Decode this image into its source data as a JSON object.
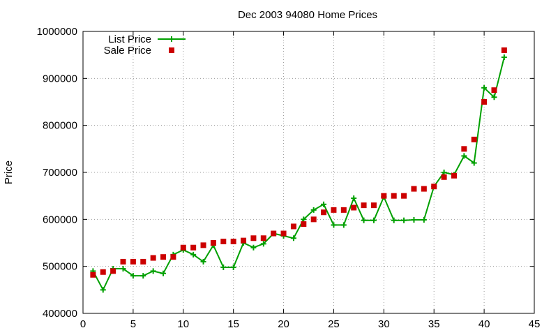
{
  "chart_data": {
    "type": "scatter",
    "title": "Dec 2003 94080 Home Prices",
    "xlabel": "",
    "ylabel": "Price",
    "xlim": [
      0,
      45
    ],
    "ylim": [
      400000,
      1000000
    ],
    "xticks": [
      0,
      5,
      10,
      15,
      20,
      25,
      30,
      35,
      40,
      45
    ],
    "yticks": [
      400000,
      500000,
      600000,
      700000,
      800000,
      900000,
      1000000
    ],
    "grid": true,
    "legend_position": "top-left",
    "series": [
      {
        "name": "List Price",
        "style": "linespoints",
        "color": "#00a000",
        "x": [
          1,
          2,
          3,
          4,
          5,
          6,
          7,
          8,
          9,
          10,
          11,
          12,
          13,
          14,
          15,
          16,
          17,
          18,
          19,
          20,
          21,
          22,
          23,
          24,
          25,
          26,
          27,
          28,
          29,
          30,
          31,
          32,
          33,
          34,
          35,
          36,
          37,
          38,
          39,
          40,
          41,
          42
        ],
        "y": [
          490000,
          450000,
          495000,
          495000,
          480000,
          480000,
          490000,
          485000,
          525000,
          535000,
          525000,
          510000,
          545000,
          498000,
          498000,
          550000,
          540000,
          548000,
          570000,
          565000,
          560000,
          600000,
          620000,
          632000,
          588000,
          588000,
          645000,
          598000,
          598000,
          648000,
          598000,
          598000,
          599000,
          599000,
          670000,
          700000,
          695000,
          735000,
          720000,
          880000,
          860000,
          945000
        ]
      },
      {
        "name": "Sale Price",
        "style": "points",
        "color": "#cc0000",
        "x": [
          1,
          2,
          3,
          4,
          5,
          6,
          7,
          8,
          9,
          10,
          11,
          12,
          13,
          14,
          15,
          16,
          17,
          18,
          19,
          20,
          21,
          22,
          23,
          24,
          25,
          26,
          27,
          28,
          29,
          30,
          31,
          32,
          33,
          34,
          35,
          36,
          37,
          38,
          39,
          40,
          41,
          42
        ],
        "y": [
          482000,
          488000,
          490000,
          510000,
          510000,
          510000,
          518000,
          520000,
          520000,
          540000,
          540000,
          545000,
          550000,
          553000,
          553000,
          555000,
          560000,
          560000,
          570000,
          570000,
          585000,
          590000,
          600000,
          615000,
          620000,
          620000,
          625000,
          630000,
          630000,
          650000,
          650000,
          650000,
          665000,
          665000,
          670000,
          690000,
          693000,
          750000,
          770000,
          850000,
          875000,
          960000
        ]
      }
    ]
  }
}
